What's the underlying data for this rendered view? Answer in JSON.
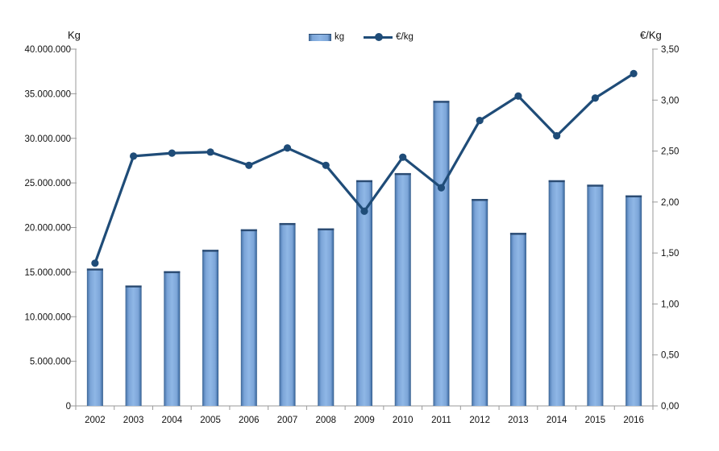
{
  "chart_data": {
    "type": "combo-bar-line",
    "categories": [
      "2002",
      "2003",
      "2004",
      "2005",
      "2006",
      "2007",
      "2008",
      "2009",
      "2010",
      "2011",
      "2012",
      "2013",
      "2014",
      "2015",
      "2016"
    ],
    "series": [
      {
        "name": "kg",
        "type": "bar",
        "axis": "left",
        "values": [
          15400000,
          13500000,
          15100000,
          17500000,
          19800000,
          20500000,
          19900000,
          25300000,
          26100000,
          34200000,
          23200000,
          19400000,
          25300000,
          24800000,
          23600000
        ]
      },
      {
        "name": "€/kg",
        "type": "line",
        "axis": "right",
        "values": [
          1.4,
          2.45,
          2.48,
          2.49,
          2.36,
          2.53,
          2.36,
          1.91,
          2.44,
          2.14,
          2.8,
          3.04,
          2.65,
          3.02,
          3.26
        ]
      }
    ],
    "left_axis": {
      "title": "Kg",
      "min": 0,
      "max": 40000000,
      "step": 5000000,
      "tick_labels": [
        "0",
        "5.000.000",
        "10.000.000",
        "15.000.000",
        "20.000.000",
        "25.000.000",
        "30.000.000",
        "35.000.000",
        "40.000.000"
      ]
    },
    "right_axis": {
      "title": "€/Kg",
      "min": 0,
      "max": 3.5,
      "step": 0.5,
      "tick_labels": [
        "0,00",
        "0,50",
        "1,00",
        "1,50",
        "2,00",
        "2,50",
        "3,00",
        "3,50"
      ]
    },
    "legend": [
      "kg",
      "€/kg"
    ],
    "grid": "off",
    "legend_position": "top-center",
    "colors": {
      "bar_fill_light": "#8FB7E6",
      "bar_fill_mid": "#7CA5D8",
      "bar_edge_left": "#39618F",
      "bar_edge_right": "#2F5784",
      "bar_top_cap": "#2B4B72",
      "line": "#1F4C78",
      "axis": "#9A9A9A",
      "text": "#111111"
    }
  }
}
